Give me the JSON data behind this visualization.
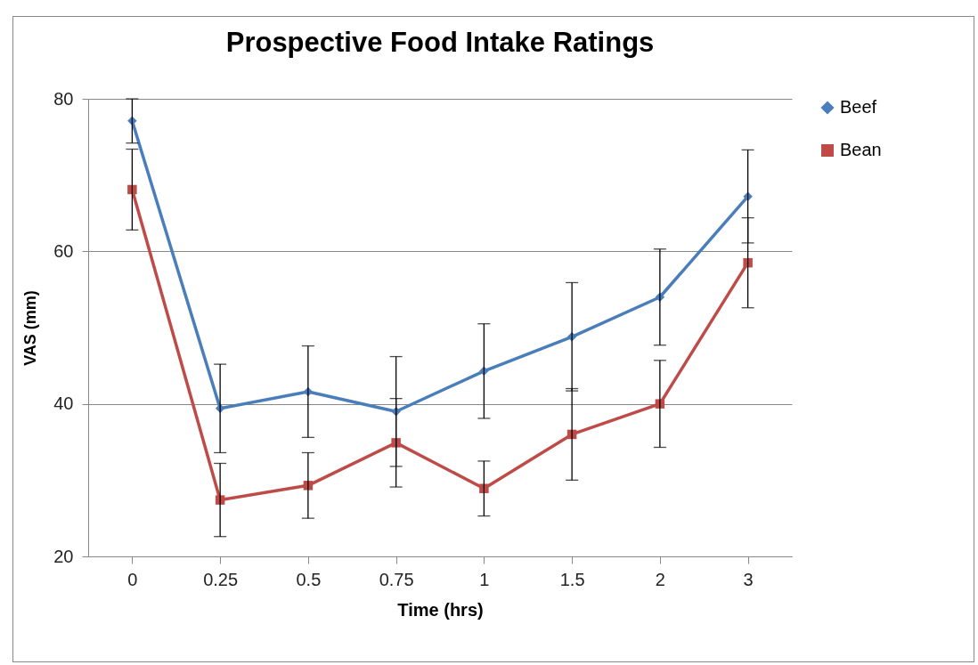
{
  "chart_data": {
    "type": "line",
    "title": "Prospective Food Intake Ratings",
    "xlabel": "Time (hrs)",
    "ylabel": "VAS (mm)",
    "categories": [
      "0",
      "0.25",
      "0.5",
      "0.75",
      "1",
      "1.5",
      "2",
      "3"
    ],
    "ylim": [
      20,
      80
    ],
    "yticks": [
      20,
      40,
      60,
      80
    ],
    "grid": "y",
    "legend": "right",
    "line_style": "solid",
    "series": [
      {
        "name": "Beef",
        "color": "#4a7ebb",
        "marker": "diamond",
        "values": [
          77.1,
          39.4,
          41.6,
          39.0,
          44.3,
          48.8,
          54.0,
          67.2
        ],
        "errors": [
          2.9,
          5.8,
          6.0,
          7.2,
          6.2,
          7.1,
          6.3,
          6.1
        ]
      },
      {
        "name": "Bean",
        "color": "#be4b48",
        "marker": "square",
        "values": [
          68.1,
          27.4,
          29.3,
          34.9,
          28.9,
          36.0,
          40.0,
          58.5
        ],
        "errors": [
          5.3,
          4.8,
          4.3,
          5.8,
          3.6,
          6.0,
          5.7,
          5.9
        ]
      }
    ]
  }
}
